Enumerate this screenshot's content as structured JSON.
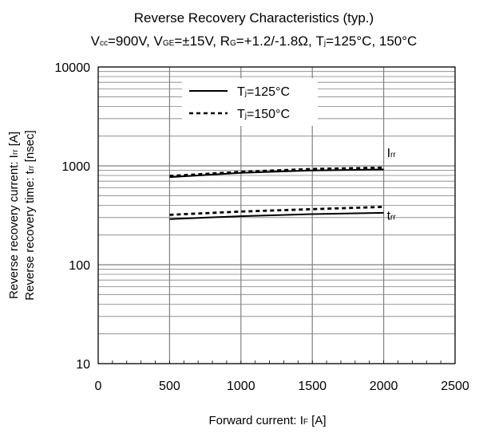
{
  "chart_data": {
    "type": "line",
    "title": "Reverse Recovery Characteristics (typ.)",
    "subtitle": {
      "vcc_main": "V",
      "vcc_sub": "cc",
      "vcc_value": "=900V, ",
      "vge_main": "V",
      "vge_sub": "GE",
      "vge_value": "=±15V, ",
      "rg_main": "R",
      "rg_sub": "G",
      "rg_value": "=+1.2/-1.8Ω, ",
      "tj_main": "T",
      "tj_sub": "j",
      "tj_value": "=125°C, 150°C"
    },
    "xlabel": {
      "main": "Forward current: I",
      "sub": "F",
      "tail": " [A]"
    },
    "ylabel": {
      "line1_main": "Reverse recovery current: I",
      "line1_sub": "rr",
      "line1_tail": " [A]",
      "line2_main": "Reverse recovery time: t",
      "line2_sub": "rr",
      "line2_tail": " [nsec]"
    },
    "x_scale": "linear",
    "xlim": [
      0,
      2500
    ],
    "x_ticks": [
      0,
      500,
      1000,
      1500,
      2000,
      2500
    ],
    "x_tick_labels": [
      "0",
      "500",
      "1000",
      "1500",
      "2000",
      "2500"
    ],
    "y_scale": "log",
    "ylim": [
      10,
      10000
    ],
    "y_ticks": [
      10,
      100,
      1000,
      10000
    ],
    "y_tick_labels": [
      "10",
      "100",
      "1000",
      "10000"
    ],
    "grid": true,
    "legend": {
      "placement": "top-center",
      "entries": [
        {
          "main": "T",
          "sub": "j",
          "value": "=125",
          "unit": "°C",
          "style": "solid"
        },
        {
          "main": "T",
          "sub": "j",
          "value": "=150",
          "unit": "°C",
          "style": "dashed"
        }
      ]
    },
    "series": [
      {
        "group": "Irr",
        "style": "solid",
        "x": [
          500,
          1000,
          1500,
          2000
        ],
        "y": [
          770,
          850,
          900,
          920
        ]
      },
      {
        "group": "Irr",
        "style": "dashed",
        "x": [
          500,
          1000,
          1500,
          2000
        ],
        "y": [
          790,
          870,
          930,
          960
        ]
      },
      {
        "group": "trr",
        "style": "solid",
        "x": [
          500,
          1000,
          1500,
          2000
        ],
        "y": [
          290,
          310,
          325,
          335
        ]
      },
      {
        "group": "trr",
        "style": "dashed",
        "x": [
          500,
          1000,
          1500,
          2000
        ],
        "y": [
          320,
          345,
          365,
          385
        ]
      }
    ],
    "annotations": [
      {
        "target": "Irr",
        "main": "I",
        "sub": "rr"
      },
      {
        "target": "trr",
        "main": "t",
        "sub": "rr"
      }
    ],
    "colors": {
      "line": "#000000",
      "grid": "#808080",
      "background": "#ffffff"
    }
  }
}
